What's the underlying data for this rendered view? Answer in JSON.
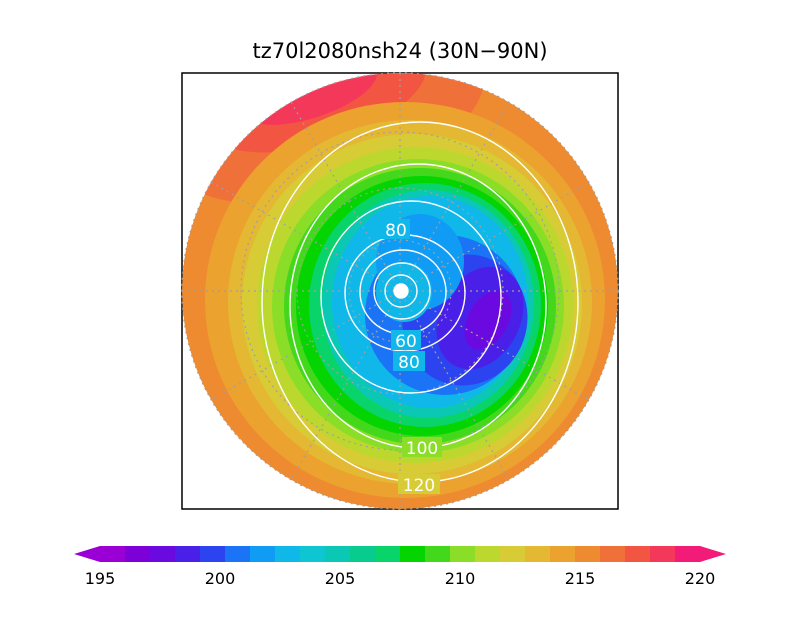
{
  "chart_data": {
    "type": "heatmap",
    "projection": "north-polar-stereographic",
    "title": "tz70l2080nsh24 (30N−90N)",
    "latitude_range": [
      30,
      90
    ],
    "colorbar": {
      "min": 195,
      "max": 220,
      "step": 1,
      "tick_labels": [
        "195",
        "200",
        "205",
        "210",
        "215",
        "220"
      ],
      "extend": "both",
      "colors": [
        "#9a00d6",
        "#7e00d8",
        "#6a0ae0",
        "#4a20e8",
        "#2c44f0",
        "#1a74f5",
        "#109cf5",
        "#10b8ea",
        "#0ec6d2",
        "#0ac8b4",
        "#08cc8e",
        "#08d46a",
        "#04d400",
        "#44d81c",
        "#8ade28",
        "#bcd82e",
        "#d8cc36",
        "#e4b832",
        "#eca22e",
        "#ee8a30",
        "#f0703a",
        "#f25642",
        "#f4385a",
        "#f21c78"
      ]
    },
    "contour_lines": {
      "color": "white",
      "labels": [
        {
          "text": "80"
        },
        {
          "text": "60"
        },
        {
          "text": "80"
        },
        {
          "text": "100"
        },
        {
          "text": "120"
        }
      ]
    },
    "gridlines": "dotted"
  }
}
